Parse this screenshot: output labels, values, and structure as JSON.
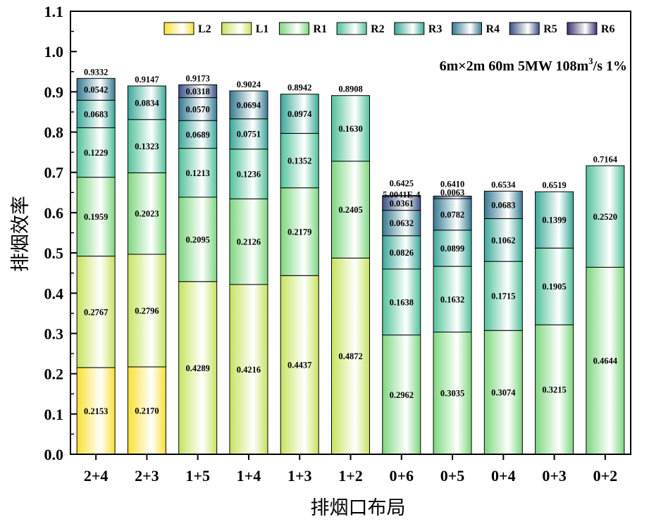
{
  "chart_data": {
    "type": "bar",
    "stacked": true,
    "xlabel": "排烟口布局",
    "ylabel": "排烟效率",
    "ylim": [
      0,
      1.1
    ],
    "yticks": [
      "0.0",
      "0.1",
      "0.2",
      "0.3",
      "0.4",
      "0.5",
      "0.6",
      "0.7",
      "0.8",
      "0.9",
      "1.0",
      "1.1"
    ],
    "annotation": {
      "main": "6m×2m 60m 5MW 108m",
      "sup": "3",
      "tail": "/s  1%"
    },
    "legend": [
      "L2",
      "L1",
      "R1",
      "R2",
      "R3",
      "R4",
      "R5",
      "R6"
    ],
    "legend_position": "top",
    "series_colors": {
      "L2": "#f7e033",
      "L1": "#c5e35e",
      "R1": "#7dd67f",
      "R2": "#52c29a",
      "R3": "#3aa899",
      "R4": "#357a91",
      "R5": "#3c5286",
      "R6": "#3b3472"
    },
    "categories": [
      "2+4",
      "2+3",
      "1+5",
      "1+4",
      "1+3",
      "1+2",
      "0+6",
      "0+5",
      "0+4",
      "0+3",
      "0+2"
    ],
    "bars": [
      {
        "category": "2+4",
        "total": "0.9332",
        "segments": [
          {
            "series": "L2",
            "value": 0.2153,
            "label": "0.2153"
          },
          {
            "series": "L1",
            "value": 0.2767,
            "label": "0.2767"
          },
          {
            "series": "R1",
            "value": 0.1959,
            "label": "0.1959"
          },
          {
            "series": "R2",
            "value": 0.1229,
            "label": "0.1229"
          },
          {
            "series": "R3",
            "value": 0.0683,
            "label": "0.0683"
          },
          {
            "series": "R4",
            "value": 0.0542,
            "label": "0.0542"
          }
        ]
      },
      {
        "category": "2+3",
        "total": "0.9147",
        "segments": [
          {
            "series": "L2",
            "value": 0.217,
            "label": "0.2170"
          },
          {
            "series": "L1",
            "value": 0.2796,
            "label": "0.2796"
          },
          {
            "series": "R1",
            "value": 0.2023,
            "label": "0.2023"
          },
          {
            "series": "R2",
            "value": 0.1323,
            "label": "0.1323"
          },
          {
            "series": "R3",
            "value": 0.0834,
            "label": "0.0834"
          }
        ]
      },
      {
        "category": "1+5",
        "total": "0.9173",
        "segments": [
          {
            "series": "L1",
            "value": 0.4289,
            "label": "0.4289"
          },
          {
            "series": "R1",
            "value": 0.2095,
            "label": "0.2095"
          },
          {
            "series": "R2",
            "value": 0.1213,
            "label": "0.1213"
          },
          {
            "series": "R3",
            "value": 0.0689,
            "label": "0.0689"
          },
          {
            "series": "R4",
            "value": 0.057,
            "label": "0.0570"
          },
          {
            "series": "R5",
            "value": 0.0318,
            "label": "0.0318"
          }
        ]
      },
      {
        "category": "1+4",
        "total": "0.9024",
        "segments": [
          {
            "series": "L1",
            "value": 0.4216,
            "label": "0.4216"
          },
          {
            "series": "R1",
            "value": 0.2126,
            "label": "0.2126"
          },
          {
            "series": "R2",
            "value": 0.1236,
            "label": "0.1236"
          },
          {
            "series": "R3",
            "value": 0.0751,
            "label": "0.0751"
          },
          {
            "series": "R4",
            "value": 0.0694,
            "label": "0.0694"
          }
        ]
      },
      {
        "category": "1+3",
        "total": "0.8942",
        "segments": [
          {
            "series": "L1",
            "value": 0.4437,
            "label": "0.4437"
          },
          {
            "series": "R1",
            "value": 0.2179,
            "label": "0.2179"
          },
          {
            "series": "R2",
            "value": 0.1352,
            "label": "0.1352"
          },
          {
            "series": "R3",
            "value": 0.0974,
            "label": "0.0974"
          }
        ]
      },
      {
        "category": "1+2",
        "total": "0.8908",
        "segments": [
          {
            "series": "L1",
            "value": 0.4872,
            "label": "0.4872"
          },
          {
            "series": "R1",
            "value": 0.2405,
            "label": "0.2405"
          },
          {
            "series": "R2",
            "value": 0.163,
            "label": "0.1630"
          }
        ]
      },
      {
        "category": "0+6",
        "total": "0.6425",
        "segments": [
          {
            "series": "R1",
            "value": 0.2962,
            "label": "0.2962"
          },
          {
            "series": "R2",
            "value": 0.1638,
            "label": "0.1638"
          },
          {
            "series": "R3",
            "value": 0.0826,
            "label": "0.0826"
          },
          {
            "series": "R4",
            "value": 0.0632,
            "label": "0.0632"
          },
          {
            "series": "R5",
            "value": 0.0361,
            "label": "0.0361"
          },
          {
            "series": "R6",
            "value": 0.0005,
            "label": "5.0041E-4"
          }
        ]
      },
      {
        "category": "0+5",
        "total": "0.6410",
        "segments": [
          {
            "series": "R1",
            "value": 0.3035,
            "label": "0.3035"
          },
          {
            "series": "R2",
            "value": 0.1632,
            "label": "0.1632"
          },
          {
            "series": "R3",
            "value": 0.0899,
            "label": "0.0899"
          },
          {
            "series": "R4",
            "value": 0.0782,
            "label": "0.0782"
          },
          {
            "series": "R5",
            "value": 0.0063,
            "label": "0.0063"
          }
        ]
      },
      {
        "category": "0+4",
        "total": "0.6534",
        "segments": [
          {
            "series": "R1",
            "value": 0.3074,
            "label": "0.3074"
          },
          {
            "series": "R2",
            "value": 0.1715,
            "label": "0.1715"
          },
          {
            "series": "R3",
            "value": 0.1062,
            "label": "0.1062"
          },
          {
            "series": "R4",
            "value": 0.0683,
            "label": "0.0683"
          }
        ]
      },
      {
        "category": "0+3",
        "total": "0.6519",
        "segments": [
          {
            "series": "R1",
            "value": 0.3215,
            "label": "0.3215"
          },
          {
            "series": "R2",
            "value": 0.1905,
            "label": "0.1905"
          },
          {
            "series": "R3",
            "value": 0.1399,
            "label": "0.1399"
          }
        ]
      },
      {
        "category": "0+2",
        "total": "0.7164",
        "segments": [
          {
            "series": "R1",
            "value": 0.4644,
            "label": "0.4644"
          },
          {
            "series": "R2",
            "value": 0.252,
            "label": "0.2520"
          }
        ]
      }
    ]
  }
}
